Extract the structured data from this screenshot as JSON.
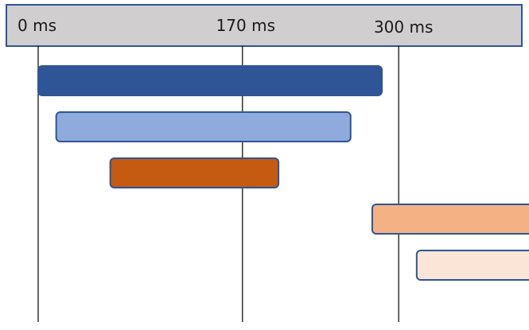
{
  "chart_data": {
    "type": "gantt",
    "axis": {
      "unit": "ms",
      "ticks": [
        {
          "value": 0,
          "label": "0 ms"
        },
        {
          "value": 170,
          "label": "170 ms"
        },
        {
          "value": 300,
          "label": "300 ms"
        }
      ]
    },
    "bars": [
      {
        "start": 0,
        "end": 286,
        "color": "#2f5597"
      },
      {
        "start": 15,
        "end": 260,
        "color": "#8faadc"
      },
      {
        "start": 60,
        "end": 200,
        "color": "#c55a11"
      },
      {
        "start": 278,
        "end": 450,
        "color": "#f4b183"
      },
      {
        "start": 315,
        "end": 438,
        "color": "#fbe5d6"
      }
    ],
    "colors": {
      "header_fill": "#d0cece",
      "header_border": "#2f5597",
      "bar_border": "#2f5597",
      "gridline": "#000000"
    }
  }
}
